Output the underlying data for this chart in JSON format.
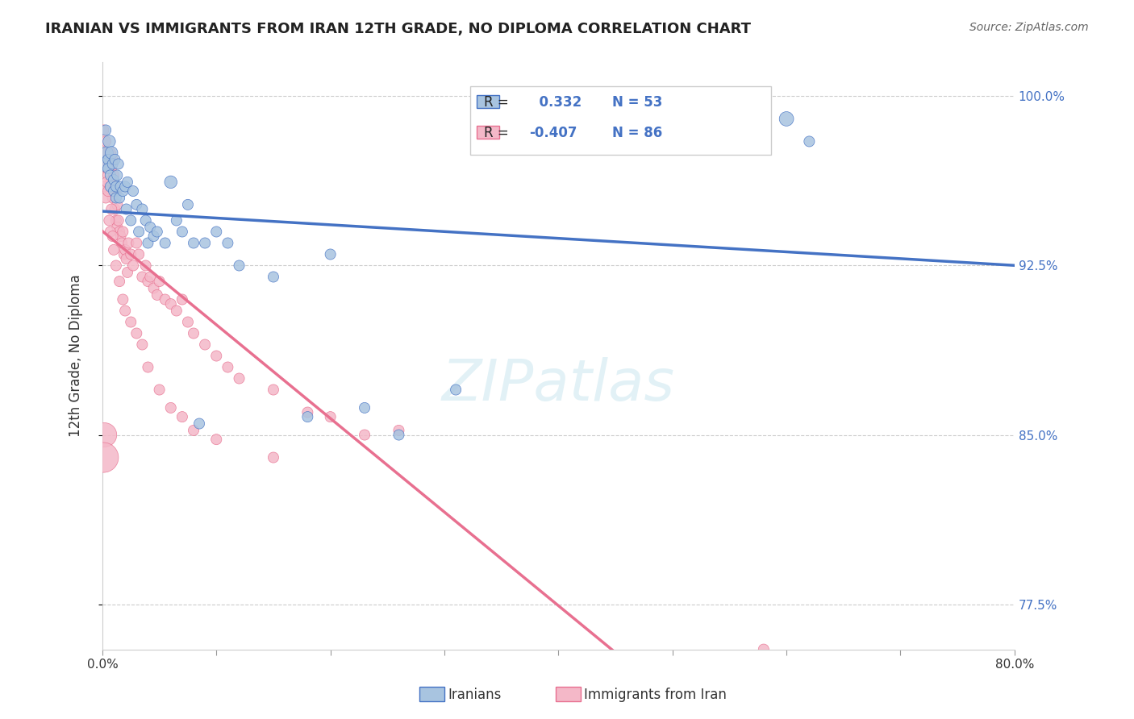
{
  "title": "IRANIAN VS IMMIGRANTS FROM IRAN 12TH GRADE, NO DIPLOMA CORRELATION CHART",
  "source": "Source: ZipAtlas.com",
  "xlabel_bottom": "",
  "ylabel": "12th Grade, No Diploma",
  "xmin": 0.0,
  "xmax": 0.8,
  "ymin": 0.755,
  "ymax": 1.015,
  "yticks": [
    0.775,
    0.85,
    0.925,
    1.0
  ],
  "ytick_labels": [
    "77.5%",
    "85.0%",
    "92.5%",
    "100.0%"
  ],
  "xticks": [
    0.0,
    0.1,
    0.2,
    0.3,
    0.4,
    0.5,
    0.6,
    0.7,
    0.8
  ],
  "xtick_labels": [
    "0.0%",
    "",
    "",
    "",
    "",
    "",
    "",
    "",
    "80.0%"
  ],
  "grid_color": "#cccccc",
  "background_color": "#ffffff",
  "iranians_color": "#a8c4e0",
  "iranians_line_color": "#4472c4",
  "immigrants_color": "#f4b8c8",
  "immigrants_line_color": "#e87090",
  "iranians_r": 0.332,
  "iranians_n": 53,
  "immigrants_r": -0.407,
  "immigrants_n": 86,
  "watermark": "ZIPatlas",
  "iranians_x": [
    0.002,
    0.003,
    0.004,
    0.005,
    0.005,
    0.006,
    0.007,
    0.007,
    0.008,
    0.009,
    0.01,
    0.01,
    0.011,
    0.012,
    0.012,
    0.013,
    0.014,
    0.015,
    0.016,
    0.018,
    0.02,
    0.021,
    0.022,
    0.025,
    0.027,
    0.03,
    0.032,
    0.035,
    0.038,
    0.04,
    0.042,
    0.045,
    0.048,
    0.055,
    0.06,
    0.065,
    0.07,
    0.075,
    0.08,
    0.085,
    0.09,
    0.1,
    0.11,
    0.12,
    0.15,
    0.18,
    0.2,
    0.23,
    0.26,
    0.31,
    0.55,
    0.6,
    0.62
  ],
  "iranians_y": [
    0.97,
    0.985,
    0.975,
    0.972,
    0.968,
    0.98,
    0.965,
    0.96,
    0.975,
    0.97,
    0.958,
    0.963,
    0.972,
    0.96,
    0.955,
    0.965,
    0.97,
    0.955,
    0.96,
    0.958,
    0.96,
    0.95,
    0.962,
    0.945,
    0.958,
    0.952,
    0.94,
    0.95,
    0.945,
    0.935,
    0.942,
    0.938,
    0.94,
    0.935,
    0.962,
    0.945,
    0.94,
    0.952,
    0.935,
    0.855,
    0.935,
    0.94,
    0.935,
    0.925,
    0.92,
    0.858,
    0.93,
    0.862,
    0.85,
    0.87,
    0.99,
    0.99,
    0.98
  ],
  "iranians_size": [
    30,
    20,
    25,
    20,
    20,
    25,
    20,
    20,
    25,
    20,
    20,
    20,
    20,
    20,
    20,
    20,
    20,
    20,
    20,
    20,
    20,
    20,
    20,
    20,
    20,
    20,
    20,
    20,
    20,
    20,
    20,
    20,
    20,
    20,
    25,
    20,
    20,
    20,
    20,
    20,
    20,
    20,
    20,
    20,
    20,
    20,
    20,
    20,
    20,
    20,
    30,
    30,
    20
  ],
  "immigrants_x": [
    0.001,
    0.002,
    0.003,
    0.003,
    0.004,
    0.004,
    0.005,
    0.005,
    0.006,
    0.006,
    0.007,
    0.007,
    0.008,
    0.008,
    0.009,
    0.009,
    0.01,
    0.01,
    0.011,
    0.011,
    0.012,
    0.012,
    0.013,
    0.013,
    0.014,
    0.015,
    0.016,
    0.017,
    0.018,
    0.019,
    0.02,
    0.021,
    0.022,
    0.023,
    0.025,
    0.027,
    0.03,
    0.032,
    0.035,
    0.038,
    0.04,
    0.042,
    0.045,
    0.048,
    0.05,
    0.055,
    0.06,
    0.065,
    0.07,
    0.075,
    0.08,
    0.09,
    0.1,
    0.11,
    0.12,
    0.15,
    0.18,
    0.2,
    0.23,
    0.26,
    0.002,
    0.003,
    0.004,
    0.005,
    0.006,
    0.007,
    0.008,
    0.009,
    0.01,
    0.012,
    0.015,
    0.018,
    0.02,
    0.025,
    0.03,
    0.035,
    0.04,
    0.05,
    0.06,
    0.07,
    0.08,
    0.1,
    0.15,
    0.58,
    0.002,
    0.001
  ],
  "immigrants_y": [
    0.985,
    0.975,
    0.98,
    0.97,
    0.968,
    0.972,
    0.975,
    0.965,
    0.97,
    0.96,
    0.975,
    0.962,
    0.968,
    0.958,
    0.972,
    0.955,
    0.965,
    0.958,
    0.96,
    0.95,
    0.958,
    0.945,
    0.952,
    0.942,
    0.945,
    0.94,
    0.938,
    0.935,
    0.94,
    0.93,
    0.932,
    0.928,
    0.922,
    0.935,
    0.93,
    0.925,
    0.935,
    0.93,
    0.92,
    0.925,
    0.918,
    0.92,
    0.915,
    0.912,
    0.918,
    0.91,
    0.908,
    0.905,
    0.91,
    0.9,
    0.895,
    0.89,
    0.885,
    0.88,
    0.875,
    0.87,
    0.86,
    0.858,
    0.85,
    0.852,
    0.96,
    0.955,
    0.962,
    0.958,
    0.945,
    0.94,
    0.95,
    0.938,
    0.932,
    0.925,
    0.918,
    0.91,
    0.905,
    0.9,
    0.895,
    0.89,
    0.88,
    0.87,
    0.862,
    0.858,
    0.852,
    0.848,
    0.84,
    0.755,
    0.85,
    0.84
  ],
  "immigrants_size": [
    20,
    20,
    20,
    20,
    20,
    20,
    20,
    20,
    20,
    20,
    20,
    20,
    20,
    20,
    20,
    20,
    20,
    20,
    20,
    20,
    20,
    20,
    20,
    20,
    20,
    20,
    20,
    20,
    20,
    20,
    20,
    20,
    20,
    20,
    20,
    20,
    20,
    20,
    20,
    20,
    20,
    20,
    20,
    20,
    20,
    20,
    20,
    20,
    20,
    20,
    20,
    20,
    20,
    20,
    20,
    20,
    20,
    20,
    20,
    20,
    20,
    20,
    20,
    20,
    20,
    20,
    20,
    20,
    20,
    20,
    20,
    20,
    20,
    20,
    20,
    20,
    20,
    20,
    20,
    20,
    20,
    20,
    20,
    20,
    60,
    80
  ]
}
